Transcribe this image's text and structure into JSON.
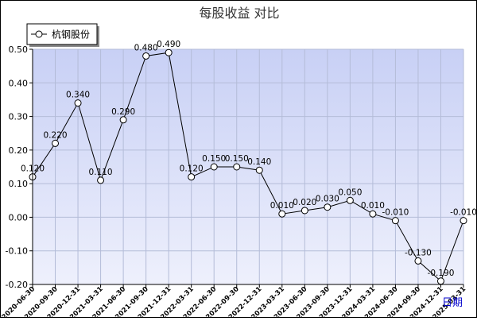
{
  "chart_data": {
    "type": "line",
    "title": "每股收益  对比",
    "xlabel": "日期",
    "ylabel": "",
    "ylim": [
      -0.2,
      0.5
    ],
    "yticks": [
      -0.2,
      -0.1,
      0.0,
      0.1,
      0.2,
      0.3,
      0.4,
      0.5
    ],
    "ytick_labels": [
      "-0.20",
      "-0.10",
      "0.00",
      "0.10",
      "0.20",
      "0.30",
      "0.40",
      "0.50"
    ],
    "grid": true,
    "legend_position": "top-left",
    "categories": [
      "2020-06-30",
      "2020-09-30",
      "2020-12-31",
      "2021-03-31",
      "2021-06-30",
      "2021-09-30",
      "2021-12-31",
      "2022-03-31",
      "2022-06-30",
      "2022-09-30",
      "2022-12-31",
      "2023-03-31",
      "2023-06-30",
      "2023-09-30",
      "2023-12-31",
      "2024-03-31",
      "2024-06-30",
      "2024-09-30",
      "2024-12-31",
      "2025-03-31"
    ],
    "series": [
      {
        "name": "杭钢股份",
        "values": [
          0.12,
          0.22,
          0.34,
          0.11,
          0.29,
          0.48,
          0.49,
          0.12,
          0.15,
          0.15,
          0.14,
          0.01,
          0.02,
          0.03,
          0.05,
          0.01,
          -0.01,
          -0.13,
          -0.19,
          -0.01
        ],
        "data_labels": [
          "0.120",
          "0.220",
          "0.340",
          "0.110",
          "0.290",
          "0.480",
          "0.490",
          "0.120",
          "0.150",
          "0.150",
          "0.140",
          "0.010",
          "0.020",
          "0.030",
          "0.050",
          "0.010",
          "-0.010",
          "-0.130",
          "-0.190",
          "-0.010"
        ]
      }
    ],
    "colors": {
      "plot_bg_top": "#c8d0f5",
      "plot_bg_bottom": "#eef0fc",
      "grid": "#b4bcd8",
      "line": "#000000",
      "marker_fill": "#ffffff",
      "xlabel": "#0000cc"
    }
  }
}
